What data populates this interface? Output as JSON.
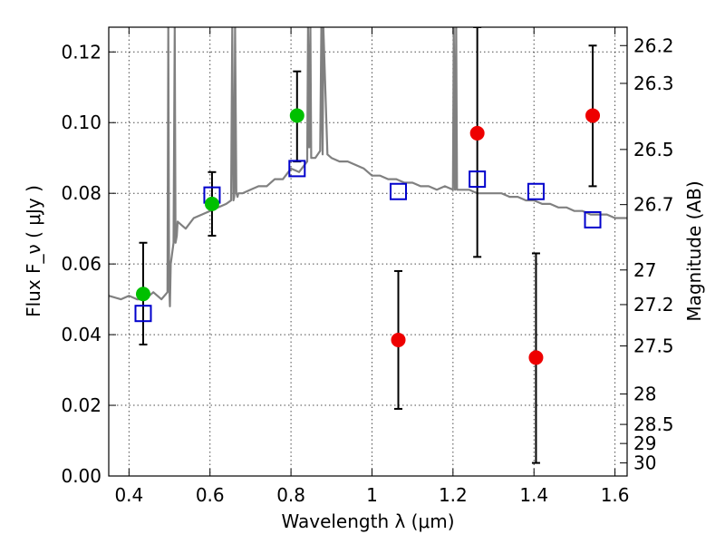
{
  "chart_data": {
    "type": "scatter",
    "title": "",
    "xlabel": "Wavelength  λ (μm)",
    "ylabel": "Flux  F_ν  ( μJy )",
    "y2label": "Magnitude (AB)",
    "xlim": [
      0.35,
      1.63
    ],
    "ylim": [
      0.0,
      0.127
    ],
    "x_ticks": [
      0.4,
      0.6,
      0.8,
      1.0,
      1.2,
      1.4,
      1.6
    ],
    "x_tick_labels": [
      "0.4",
      "0.6",
      "0.8",
      "1",
      "1.2",
      "1.4",
      "1.6"
    ],
    "y_ticks": [
      0.0,
      0.02,
      0.04,
      0.06,
      0.08,
      0.1,
      0.12
    ],
    "y_tick_labels": [
      "0.00",
      "0.02",
      "0.04",
      "0.06",
      "0.08",
      "0.10",
      "0.12"
    ],
    "y2_ticks": [
      {
        "label": "26.2",
        "flux": 0.1218
      },
      {
        "label": "26.3",
        "flux": 0.1111
      },
      {
        "label": "26.5",
        "flux": 0.0924
      },
      {
        "label": "26.7",
        "flux": 0.0768
      },
      {
        "label": "27",
        "flux": 0.0583
      },
      {
        "label": "27.2",
        "flux": 0.0485
      },
      {
        "label": "27.5",
        "flux": 0.0368
      },
      {
        "label": "28",
        "flux": 0.0232
      },
      {
        "label": "28.5",
        "flux": 0.0146
      },
      {
        "label": "29",
        "flux": 0.0092
      },
      {
        "label": "30",
        "flux": 0.0037
      }
    ],
    "grid": true,
    "colors": {
      "spectrum": "#808080",
      "green": "#00c000",
      "red": "#ee0000",
      "model": "#0000cc",
      "errorbar": "#000000"
    },
    "series": [
      {
        "type": "line",
        "style": "spectrum",
        "x": [
          0.35,
          0.38,
          0.4,
          0.42,
          0.44,
          0.46,
          0.48,
          0.495,
          0.497,
          0.499,
          0.501,
          0.503,
          0.51,
          0.513,
          0.515,
          0.518,
          0.52,
          0.53,
          0.54,
          0.56,
          0.58,
          0.6,
          0.62,
          0.64,
          0.652,
          0.655,
          0.658,
          0.66,
          0.662,
          0.665,
          0.668,
          0.67,
          0.68,
          0.7,
          0.72,
          0.74,
          0.76,
          0.78,
          0.8,
          0.82,
          0.84,
          0.842,
          0.845,
          0.848,
          0.85,
          0.86,
          0.872,
          0.875,
          0.878,
          0.88,
          0.89,
          0.9,
          0.92,
          0.94,
          0.96,
          0.98,
          1.0,
          1.02,
          1.04,
          1.06,
          1.08,
          1.1,
          1.12,
          1.14,
          1.16,
          1.18,
          1.2,
          1.202,
          1.205,
          1.208,
          1.21,
          1.22,
          1.24,
          1.26,
          1.28,
          1.3,
          1.32,
          1.34,
          1.36,
          1.38,
          1.4,
          1.42,
          1.44,
          1.46,
          1.48,
          1.5,
          1.52,
          1.54,
          1.56,
          1.58,
          1.6,
          1.63
        ],
        "y": [
          0.051,
          0.05,
          0.051,
          0.05,
          0.05,
          0.052,
          0.05,
          0.052,
          0.127,
          0.055,
          0.048,
          0.06,
          0.066,
          0.127,
          0.066,
          0.068,
          0.072,
          0.071,
          0.07,
          0.073,
          0.074,
          0.075,
          0.076,
          0.077,
          0.078,
          0.127,
          0.078,
          0.079,
          0.127,
          0.08,
          0.079,
          0.08,
          0.08,
          0.081,
          0.082,
          0.082,
          0.084,
          0.084,
          0.087,
          0.086,
          0.089,
          0.127,
          0.093,
          0.127,
          0.09,
          0.09,
          0.092,
          0.127,
          0.091,
          0.127,
          0.091,
          0.09,
          0.089,
          0.089,
          0.088,
          0.087,
          0.085,
          0.085,
          0.084,
          0.084,
          0.083,
          0.083,
          0.082,
          0.082,
          0.081,
          0.082,
          0.081,
          0.127,
          0.081,
          0.127,
          0.081,
          0.081,
          0.081,
          0.08,
          0.08,
          0.08,
          0.08,
          0.079,
          0.079,
          0.078,
          0.078,
          0.077,
          0.077,
          0.076,
          0.076,
          0.075,
          0.075,
          0.074,
          0.074,
          0.074,
          0.073,
          0.073
        ]
      },
      {
        "type": "points",
        "style": "green",
        "x": [
          0.435,
          0.605,
          0.815
        ],
        "y": [
          0.0515,
          0.077,
          0.102
        ],
        "yerr_low": [
          0.0372,
          0.068,
          0.089
        ],
        "yerr_high": [
          0.066,
          0.086,
          0.1145
        ]
      },
      {
        "type": "points",
        "style": "red",
        "x": [
          1.065,
          1.26,
          1.405,
          1.545
        ],
        "y": [
          0.0385,
          0.097,
          0.0335,
          0.102
        ],
        "yerr_low": [
          0.019,
          0.062,
          0.0037,
          0.082
        ],
        "yerr_high": [
          0.058,
          0.127,
          0.063,
          0.1218
        ]
      },
      {
        "type": "points",
        "style": "model",
        "x": [
          0.435,
          0.605,
          0.815,
          1.065,
          1.26,
          1.405,
          1.545
        ],
        "y": [
          0.046,
          0.0795,
          0.087,
          0.0805,
          0.084,
          0.0805,
          0.0725
        ]
      }
    ]
  }
}
